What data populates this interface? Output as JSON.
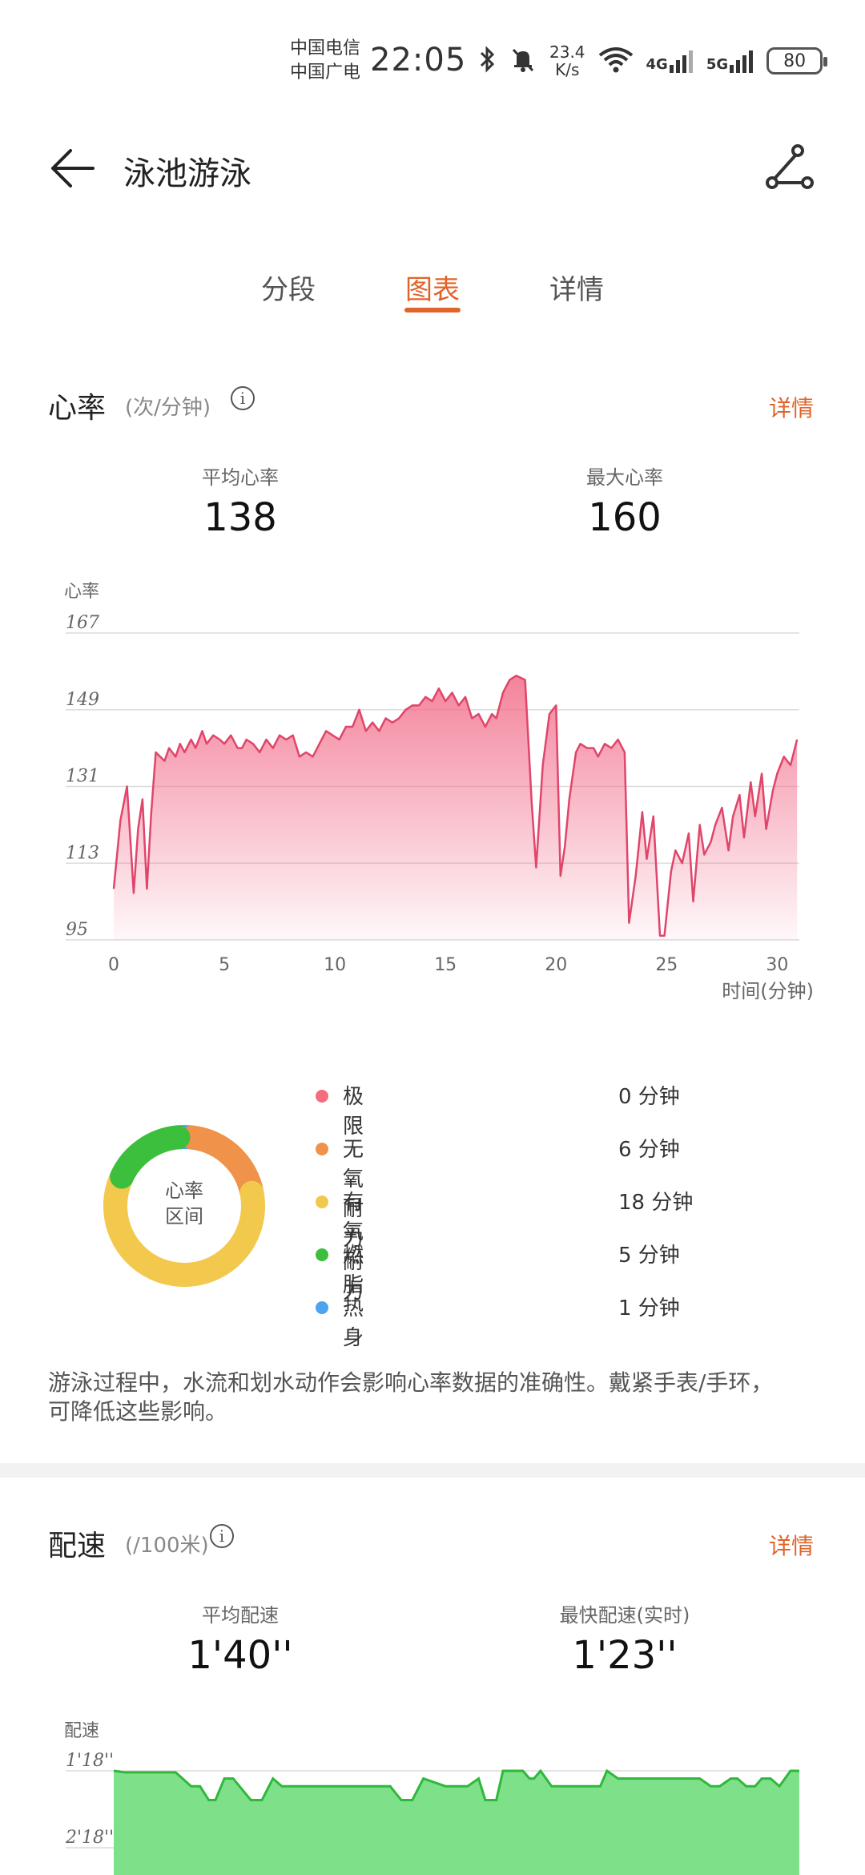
{
  "status_bar": {
    "carrier1": "中国电信",
    "carrier2": "中国广电",
    "time": "22:05",
    "speed_value": "23.4",
    "speed_unit": "K/s",
    "net1": "4G",
    "net2": "5G",
    "battery": "80"
  },
  "header": {
    "title": "泳池游泳"
  },
  "tabs": [
    {
      "label": "分段",
      "active": false
    },
    {
      "label": "图表",
      "active": true
    },
    {
      "label": "详情",
      "active": false
    }
  ],
  "heart": {
    "title": "心率",
    "unit": "(次/分钟)",
    "detail": "详情",
    "avg_label": "平均心率",
    "avg_value": "138",
    "max_label": "最大心率",
    "max_value": "160",
    "zones_center": [
      "心率",
      "区间"
    ],
    "zones": [
      {
        "name": "极限",
        "value": "0 分钟",
        "color": "#f26d7d"
      },
      {
        "name": "无氧耐力",
        "value": "6 分钟",
        "color": "#f0924a"
      },
      {
        "name": "有氧耐力",
        "value": "18 分钟",
        "color": "#f2c94c"
      },
      {
        "name": "燃脂",
        "value": "5 分钟",
        "color": "#3cbf3c"
      },
      {
        "name": "热身",
        "value": "1 分钟",
        "color": "#4ca3f0"
      }
    ],
    "note": "游泳过程中，水流和划水动作会影响心率数据的准确性。戴紧手表/手环，可降低这些影响。"
  },
  "pace": {
    "title": "配速",
    "unit": "(/100米)",
    "detail": "详情",
    "avg_label": "平均配速",
    "avg_value": "1'40''",
    "fast_label": "最快配速(实时)",
    "fast_value": "1'23''"
  },
  "chart_data": [
    {
      "type": "area",
      "ylabel": "心率",
      "xlabel": "时间(分钟)",
      "yticks": [
        167,
        149,
        131,
        113,
        95
      ],
      "xticks": [
        0,
        5,
        10,
        15,
        20,
        25,
        30
      ],
      "ylim": [
        95,
        167
      ],
      "xlim": [
        0,
        31
      ],
      "color": "#e0456a",
      "x": [
        0,
        0.3,
        0.6,
        0.9,
        1.1,
        1.3,
        1.5,
        1.7,
        1.9,
        2.1,
        2.3,
        2.5,
        2.8,
        3.0,
        3.2,
        3.5,
        3.7,
        4.0,
        4.2,
        4.5,
        4.8,
        5.0,
        5.3,
        5.6,
        5.8,
        6.0,
        6.3,
        6.6,
        6.9,
        7.2,
        7.5,
        7.8,
        8.1,
        8.4,
        8.7,
        9.0,
        9.3,
        9.6,
        9.9,
        10.2,
        10.5,
        10.8,
        11.1,
        11.4,
        11.7,
        12.0,
        12.3,
        12.6,
        12.9,
        13.2,
        13.5,
        13.8,
        14.1,
        14.4,
        14.7,
        15.0,
        15.3,
        15.6,
        15.9,
        16.2,
        16.5,
        16.8,
        17.1,
        17.3,
        17.6,
        17.9,
        18.2,
        18.6,
        18.9,
        19.1,
        19.4,
        19.7,
        20.0,
        20.2,
        20.4,
        20.6,
        20.9,
        21.1,
        21.4,
        21.7,
        21.9,
        22.2,
        22.5,
        22.8,
        23.1,
        23.3,
        23.6,
        23.9,
        24.1,
        24.4,
        24.7,
        24.9,
        25.2,
        25.4,
        25.7,
        26.0,
        26.2,
        26.5,
        26.7,
        27.0,
        27.2,
        27.5,
        27.8,
        28.0,
        28.3,
        28.5,
        28.8,
        29.0,
        29.3,
        29.5,
        29.8,
        30.0,
        30.3,
        30.6,
        30.9
      ],
      "y": [
        107,
        123,
        131,
        106,
        121,
        128,
        107,
        125,
        139,
        138,
        137,
        140,
        138,
        141,
        139,
        142,
        140,
        144,
        141,
        143,
        142,
        141,
        143,
        140,
        140,
        142,
        141,
        139,
        142,
        140,
        143,
        142,
        143,
        138,
        139,
        138,
        141,
        144,
        143,
        142,
        145,
        145,
        149,
        144,
        146,
        144,
        147,
        146,
        147,
        149,
        150,
        150,
        152,
        151,
        154,
        151,
        153,
        150,
        152,
        147,
        148,
        145,
        148,
        147,
        153,
        156,
        157,
        156,
        127,
        112,
        136,
        148,
        150,
        110,
        117,
        128,
        139,
        141,
        140,
        140,
        138,
        141,
        140,
        142,
        139,
        99,
        110,
        125,
        114,
        124,
        96,
        96,
        111,
        116,
        113,
        120,
        104,
        122,
        115,
        118,
        122,
        126,
        116,
        124,
        129,
        119,
        132,
        124,
        134,
        121,
        130,
        134,
        138,
        136,
        142
      ]
    },
    {
      "type": "area",
      "ylabel": "配速",
      "yticks": [
        "1'18''",
        "2'18''"
      ],
      "xlim": [
        0,
        31
      ],
      "color": "#3cc93c",
      "x": [
        0,
        0.5,
        2.8,
        3.5,
        3.9,
        4.3,
        4.6,
        5.0,
        5.4,
        6.2,
        6.7,
        7.2,
        7.6,
        8.4,
        9.0,
        9.5,
        10.0,
        10.5,
        11.5,
        12.5,
        13.0,
        13.5,
        14.0,
        15.0,
        16.0,
        16.5,
        16.8,
        17.3,
        17.6,
        18.0,
        18.5,
        18.8,
        19.0,
        19.3,
        19.8,
        20.6,
        21.5,
        22.0,
        22.3,
        22.8,
        23.5,
        24.5,
        25.5,
        26.5,
        27.0,
        27.4,
        27.9,
        28.2,
        28.6,
        29.0,
        29.3,
        29.7,
        30.1,
        30.6,
        31.0
      ],
      "y": [
        1.3,
        1.32,
        1.32,
        1.5,
        1.5,
        1.68,
        1.68,
        1.4,
        1.4,
        1.68,
        1.68,
        1.4,
        1.5,
        1.5,
        1.5,
        1.5,
        1.5,
        1.5,
        1.5,
        1.5,
        1.68,
        1.68,
        1.4,
        1.5,
        1.5,
        1.4,
        1.68,
        1.68,
        1.3,
        1.3,
        1.3,
        1.4,
        1.4,
        1.3,
        1.5,
        1.5,
        1.5,
        1.5,
        1.3,
        1.4,
        1.4,
        1.4,
        1.4,
        1.4,
        1.5,
        1.5,
        1.4,
        1.4,
        1.5,
        1.5,
        1.4,
        1.4,
        1.5,
        1.3,
        1.3
      ]
    }
  ]
}
